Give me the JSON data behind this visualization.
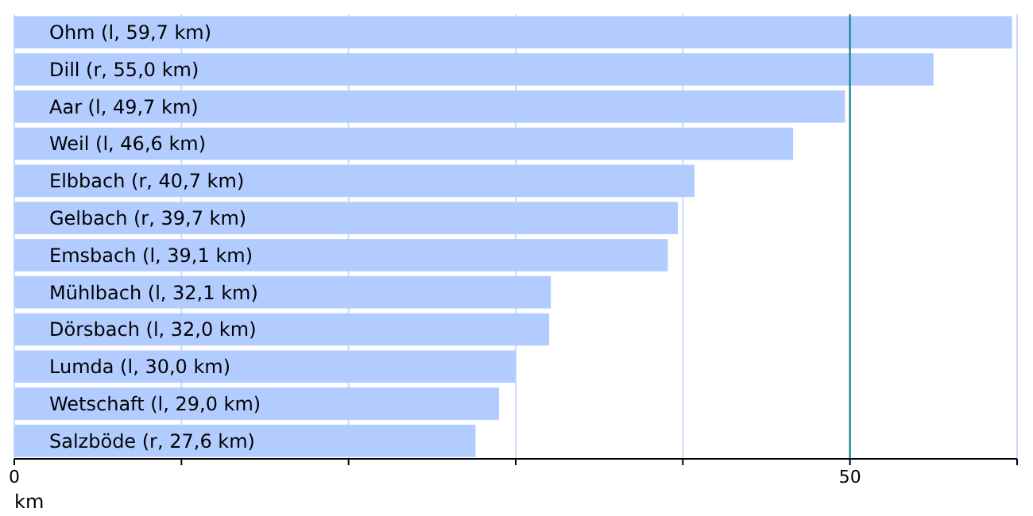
{
  "chart_data": {
    "type": "bar",
    "orientation": "horizontal",
    "xlabel": "km",
    "categories": [
      "Ohm (l, 59,7 km)",
      "Dill (r, 55,0 km)",
      "Aar (l, 49,7 km)",
      "Weil (l, 46,6 km)",
      "Elbbach (r, 40,7 km)",
      "Gelbach (r, 39,7 km)",
      "Emsbach (l, 39,1 km)",
      "Mühlbach (l, 32,1 km)",
      "Dörsbach (l, 32,0 km)",
      "Lumda (l, 30,0 km)",
      "Wetschaft (l, 29,0 km)",
      "Salzböde (r, 27,6 km)"
    ],
    "values": [
      59.7,
      55.0,
      49.7,
      46.6,
      40.7,
      39.7,
      39.1,
      32.1,
      32.0,
      30.0,
      29.0,
      27.6
    ],
    "color": "#b3ccff",
    "xlim": [
      0,
      60
    ],
    "xticks": [
      0,
      {
        "value": 10,
        "label": null
      },
      {
        "value": 20,
        "label": null
      },
      {
        "value": 30,
        "label": null
      },
      {
        "value": 40,
        "label": null
      },
      50,
      {
        "value": 60,
        "label": null
      }
    ],
    "grid": "x",
    "ref_lines": [
      {
        "axis": "x",
        "value": 50,
        "color": "#008080"
      }
    ]
  }
}
